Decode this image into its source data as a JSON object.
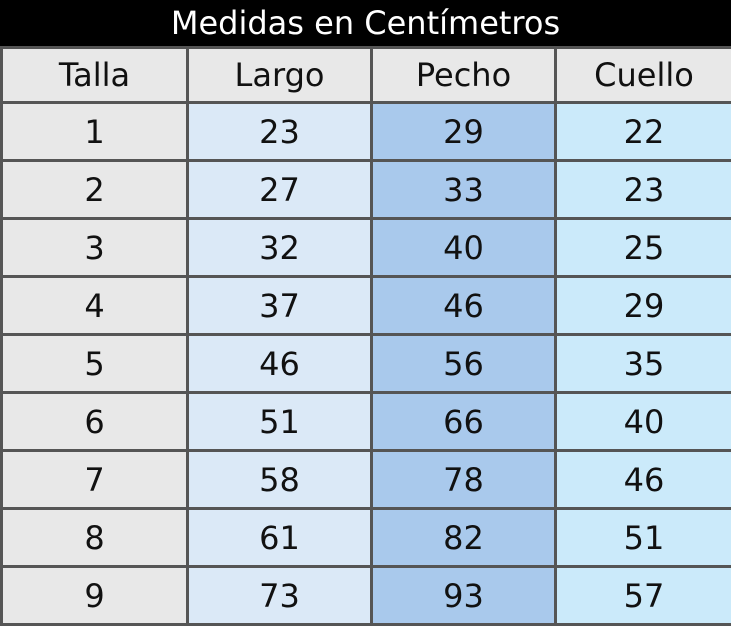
{
  "title": "Medidas en Centímetros",
  "headers": [
    "Talla",
    "Largo",
    "Pecho",
    "Cuello"
  ],
  "rows": [
    [
      "1",
      "23",
      "29",
      "22"
    ],
    [
      "2",
      "27",
      "33",
      "23"
    ],
    [
      "3",
      "32",
      "40",
      "25"
    ],
    [
      "4",
      "37",
      "46",
      "29"
    ],
    [
      "5",
      "46",
      "56",
      "35"
    ],
    [
      "6",
      "51",
      "66",
      "40"
    ],
    [
      "7",
      "58",
      "78",
      "46"
    ],
    [
      "8",
      "61",
      "82",
      "51"
    ],
    [
      "9",
      "73",
      "93",
      "57"
    ]
  ],
  "colors": {
    "title_bg": "#000000",
    "talla": "#e8e8e8",
    "largo": "#dbe9f7",
    "pecho": "#a9c9ec",
    "cuello": "#cbeafa",
    "border": "#555555"
  }
}
